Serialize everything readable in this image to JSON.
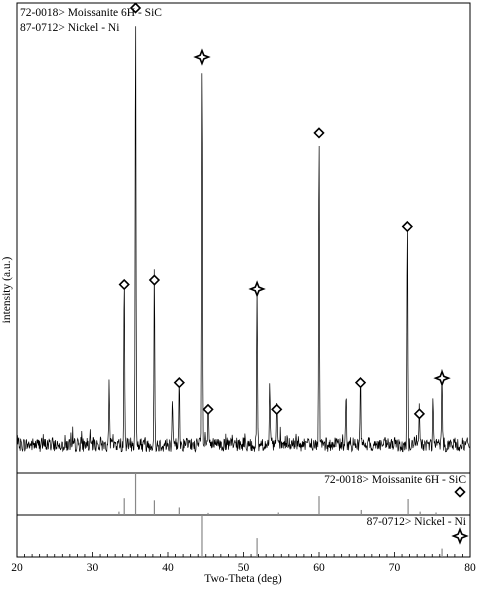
{
  "chart_data": {
    "type": "line",
    "title": "",
    "xlabel": "Two-Theta (deg)",
    "ylabel": "intensity (a.u.)",
    "xlim": [
      20,
      80
    ],
    "xticks": [
      20,
      30,
      40,
      50,
      60,
      70,
      80
    ],
    "grid": false,
    "legend_placement": "top-left",
    "legend": [
      {
        "label": "72-0018> Moissanite 6H - SiC",
        "marker": "diamond"
      },
      {
        "label": "87-0712> Nickel - Ni",
        "marker": "four-point-star"
      }
    ],
    "peaks_observed": [
      {
        "two_theta": 32.2,
        "intensity": 14,
        "phase": ""
      },
      {
        "two_theta": 34.2,
        "intensity": 38,
        "phase": "SiC"
      },
      {
        "two_theta": 35.7,
        "intensity": 100,
        "phase": "SiC"
      },
      {
        "two_theta": 38.2,
        "intensity": 39,
        "phase": "SiC"
      },
      {
        "two_theta": 40.6,
        "intensity": 9,
        "phase": ""
      },
      {
        "two_theta": 41.5,
        "intensity": 16,
        "phase": "SiC"
      },
      {
        "two_theta": 44.5,
        "intensity": 89,
        "phase": "Ni"
      },
      {
        "two_theta": 45.3,
        "intensity": 10,
        "phase": "SiC"
      },
      {
        "two_theta": 51.8,
        "intensity": 37,
        "phase": "Ni"
      },
      {
        "two_theta": 53.5,
        "intensity": 14,
        "phase": ""
      },
      {
        "two_theta": 54.4,
        "intensity": 10,
        "phase": "SiC"
      },
      {
        "two_theta": 60.0,
        "intensity": 72,
        "phase": "SiC"
      },
      {
        "two_theta": 63.6,
        "intensity": 11,
        "phase": ""
      },
      {
        "two_theta": 65.5,
        "intensity": 16,
        "phase": "SiC"
      },
      {
        "two_theta": 71.7,
        "intensity": 51,
        "phase": "SiC"
      },
      {
        "two_theta": 73.3,
        "intensity": 9,
        "phase": "SiC"
      },
      {
        "two_theta": 75.1,
        "intensity": 10,
        "phase": ""
      },
      {
        "two_theta": 76.3,
        "intensity": 17,
        "phase": "Ni"
      }
    ],
    "reference_patterns": [
      {
        "name": "72-0018> Moissanite 6H - SiC",
        "marker": "diamond",
        "lines": [
          {
            "two_theta": 33.5,
            "intensity": 8
          },
          {
            "two_theta": 34.2,
            "intensity": 40
          },
          {
            "two_theta": 35.7,
            "intensity": 100
          },
          {
            "two_theta": 38.2,
            "intensity": 35
          },
          {
            "two_theta": 41.5,
            "intensity": 18
          },
          {
            "two_theta": 45.3,
            "intensity": 5
          },
          {
            "two_theta": 54.6,
            "intensity": 6
          },
          {
            "two_theta": 60.0,
            "intensity": 45
          },
          {
            "two_theta": 65.6,
            "intensity": 12
          },
          {
            "two_theta": 71.8,
            "intensity": 38
          },
          {
            "two_theta": 73.4,
            "intensity": 8
          },
          {
            "two_theta": 75.5,
            "intensity": 6
          }
        ]
      },
      {
        "name": "87-0712> Nickel - Ni",
        "marker": "four-point-star",
        "lines": [
          {
            "two_theta": 44.5,
            "intensity": 100
          },
          {
            "two_theta": 51.8,
            "intensity": 45
          },
          {
            "two_theta": 76.3,
            "intensity": 20
          }
        ]
      }
    ]
  }
}
